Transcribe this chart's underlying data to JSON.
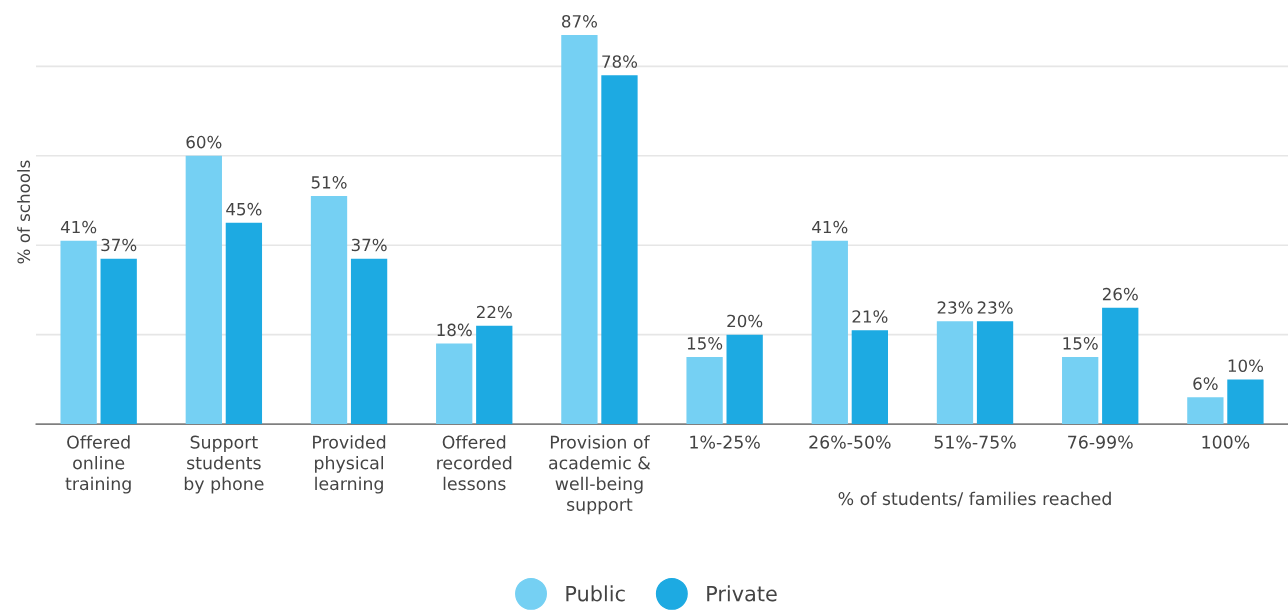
{
  "chart_data": {
    "type": "bar",
    "ylabel": "% of schools",
    "categories": [
      "Offered\nonline\ntraining",
      "Support\nstudents\nby phone",
      "Provided\nphysical\nlearning",
      "Offered\nrecorded\nlessons",
      "Provision of\nacademic &\nwell-being\nsupport",
      "1%-25%",
      "26%-50%",
      "51%-75%",
      "76-99%",
      "100%"
    ],
    "series": [
      {
        "name": "Public",
        "color": "#75d0f3",
        "values": [
          41,
          60,
          51,
          18,
          87,
          15,
          41,
          23,
          15,
          6
        ],
        "value_labels": [
          "41%",
          "60%",
          "51%",
          "18%",
          "87%",
          "15%",
          "41%",
          "23%",
          "15%",
          "6%"
        ]
      },
      {
        "name": "Private",
        "color": "#1daae2",
        "values": [
          37,
          45,
          37,
          22,
          78,
          20,
          21,
          23,
          26,
          10
        ],
        "value_labels": [
          "37%",
          "45%",
          "37%",
          "22%",
          "78%",
          "20%",
          "21%",
          "23%",
          "26%",
          "10%"
        ]
      }
    ],
    "grid": "y",
    "legend": "bottom",
    "marker": "circle",
    "annotations": [
      "% of students/ families reached"
    ]
  }
}
